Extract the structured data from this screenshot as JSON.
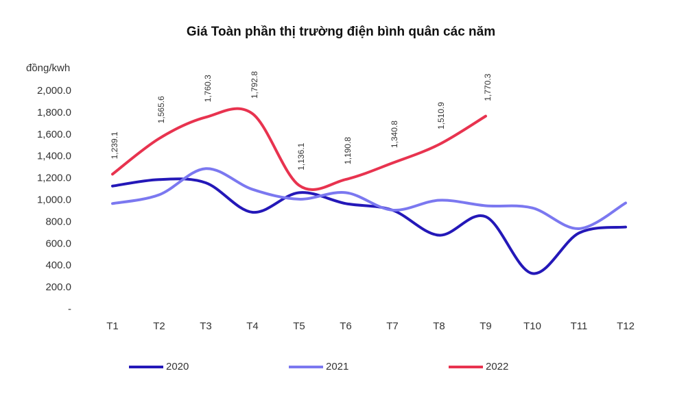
{
  "chart_data": {
    "type": "line",
    "title": "Giá Toàn phần thị trường điện bình quân các năm",
    "y_axis_label": "đồng/kwh",
    "categories": [
      "T1",
      "T2",
      "T3",
      "T4",
      "T5",
      "T6",
      "T7",
      "T8",
      "T9",
      "T10",
      "T11",
      "T12"
    ],
    "series": [
      {
        "name": "2020",
        "color": "#2418b8",
        "values": [
          1130,
          1190,
          1160,
          890,
          1070,
          970,
          910,
          680,
          850,
          330,
          700,
          755
        ]
      },
      {
        "name": "2021",
        "color": "#7b78f0",
        "values": [
          970,
          1050,
          1290,
          1100,
          1010,
          1070,
          910,
          1000,
          950,
          930,
          740,
          975
        ]
      },
      {
        "name": "2022",
        "color": "#e8334f",
        "values": [
          1239.1,
          1565.6,
          1760.3,
          1792.8,
          1136.1,
          1190.8,
          1340.8,
          1510.9,
          1770.3,
          null,
          null,
          null
        ],
        "value_labels": [
          "1,239.1",
          "1,565.6",
          "1,760.3",
          "1,792.8",
          "1,136.1",
          "1,190.8",
          "1,340.8",
          "1,510.9",
          "1,770.3",
          null,
          null,
          null
        ]
      }
    ],
    "ylim": [
      0,
      2000
    ],
    "yticks": [
      {
        "value": 0,
        "label": "-"
      },
      {
        "value": 200,
        "label": "200.0"
      },
      {
        "value": 400,
        "label": "400.0"
      },
      {
        "value": 600,
        "label": "600.0"
      },
      {
        "value": 800,
        "label": "800.0"
      },
      {
        "value": 1000,
        "label": "1,000.0"
      },
      {
        "value": 1200,
        "label": "1,200.0"
      },
      {
        "value": 1400,
        "label": "1,400.0"
      },
      {
        "value": 1600,
        "label": "1,600.0"
      },
      {
        "value": 1800,
        "label": "1,800.0"
      },
      {
        "value": 2000,
        "label": "2,000.0"
      }
    ],
    "grid": false,
    "legend": "bottom"
  }
}
